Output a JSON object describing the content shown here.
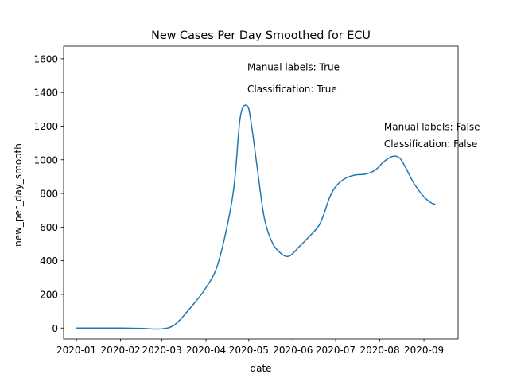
{
  "chart_data": {
    "type": "line",
    "title": "New Cases Per Day Smoothed for ECU",
    "xlabel": "date",
    "ylabel": "new_per_day_smooth",
    "x_ticks": [
      "2020-01",
      "2020-02",
      "2020-03",
      "2020-04",
      "2020-05",
      "2020-06",
      "2020-07",
      "2020-08",
      "2020-09"
    ],
    "y_ticks": [
      0,
      200,
      400,
      600,
      800,
      1000,
      1200,
      1400,
      1600
    ],
    "ylim": [
      -65,
      1675
    ],
    "xlim": [
      "2019-12-23",
      "2020-09-25"
    ],
    "grid": false,
    "legend": "none",
    "color": "#1f77b4",
    "series": [
      {
        "x": [
          "2020-01-01",
          "2020-01-15",
          "2020-02-01",
          "2020-02-15",
          "2020-03-01",
          "2020-03-10",
          "2020-03-20",
          "2020-04-01",
          "2020-04-10",
          "2020-04-20",
          "2020-04-25",
          "2020-04-30",
          "2020-05-03",
          "2020-05-07",
          "2020-05-12",
          "2020-05-18",
          "2020-05-25",
          "2020-05-30",
          "2020-06-05",
          "2020-06-12",
          "2020-06-20",
          "2020-06-27",
          "2020-07-02",
          "2020-07-08",
          "2020-07-15",
          "2020-07-22",
          "2020-07-29",
          "2020-08-04",
          "2020-08-10",
          "2020-08-15",
          "2020-08-20",
          "2020-08-25",
          "2020-09-01",
          "2020-09-06",
          "2020-09-09"
        ],
        "y": [
          0,
          0,
          0,
          -2,
          -5,
          20,
          110,
          240,
          400,
          800,
          1250,
          1320,
          1200,
          950,
          650,
          500,
          435,
          430,
          480,
          540,
          620,
          780,
          850,
          890,
          910,
          915,
          940,
          990,
          1020,
          1010,
          940,
          860,
          780,
          745,
          735
        ]
      }
    ],
    "annotations": [
      {
        "text": "Manual labels: True",
        "x": "2020-04-30",
        "y": 1530
      },
      {
        "text": "Classification: True",
        "x": "2020-04-30",
        "y": 1400
      },
      {
        "text": "Manual labels: False",
        "x": "2020-08-04",
        "y": 1175
      },
      {
        "text": "Classification: False",
        "x": "2020-08-04",
        "y": 1075
      }
    ]
  }
}
